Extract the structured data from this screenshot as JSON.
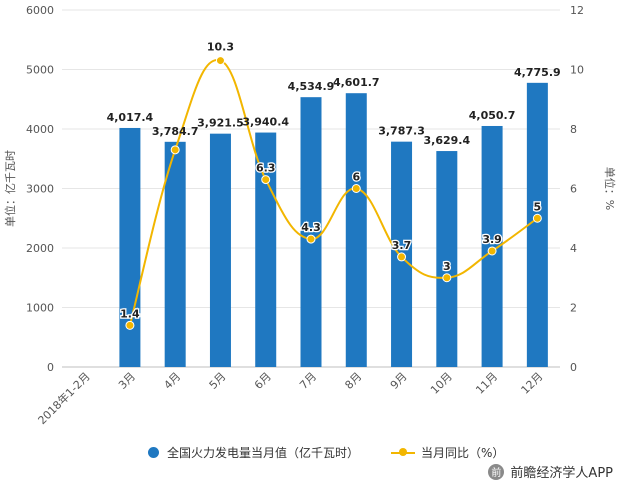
{
  "chart_data": {
    "type": "bar",
    "categories": [
      "2018年1-2月",
      "3月",
      "4月",
      "5月",
      "6月",
      "7月",
      "8月",
      "9月",
      "10月",
      "11月",
      "12月"
    ],
    "series": [
      {
        "name": "全国火力发电量当月值（亿千瓦时）",
        "type": "bar",
        "axis": "left",
        "color": "#1f78c1",
        "values": [
          null,
          4017.4,
          3784.7,
          3921.5,
          3940.4,
          4534.9,
          4601.7,
          3787.3,
          3629.4,
          4050.7,
          4775.9
        ],
        "labels": [
          "",
          "4,017.4",
          "3,784.7",
          "3,921.5",
          "3,940.4",
          "4,534.9",
          "4,601.7",
          "3,787.3",
          "3,629.4",
          "4,050.7",
          "4,775.9"
        ]
      },
      {
        "name": "当月同比（%）",
        "type": "line",
        "axis": "right",
        "color": "#f2b600",
        "values": [
          null,
          1.4,
          7.3,
          10.3,
          6.3,
          4.3,
          6,
          3.7,
          3,
          3.9,
          5
        ],
        "labels": [
          "",
          "1.4",
          "",
          "10.3",
          "6.3",
          "4.3",
          "6",
          "3.7",
          "3",
          "3.9",
          "5"
        ]
      }
    ],
    "ylabel": "单位：亿千瓦时",
    "y2label": "单位：%",
    "ylim": [
      0,
      6000
    ],
    "y2lim": [
      0,
      12
    ],
    "yticks": [
      "0",
      "1000",
      "2000",
      "3000",
      "4000",
      "5000",
      "6000"
    ],
    "y2ticks": [
      "0",
      "2",
      "4",
      "6",
      "8",
      "10",
      "12"
    ],
    "grid": true,
    "legend": "bottom"
  },
  "source": {
    "brand": "前瞻经济学人APP",
    "icon": "qianzhan-logo-icon"
  }
}
